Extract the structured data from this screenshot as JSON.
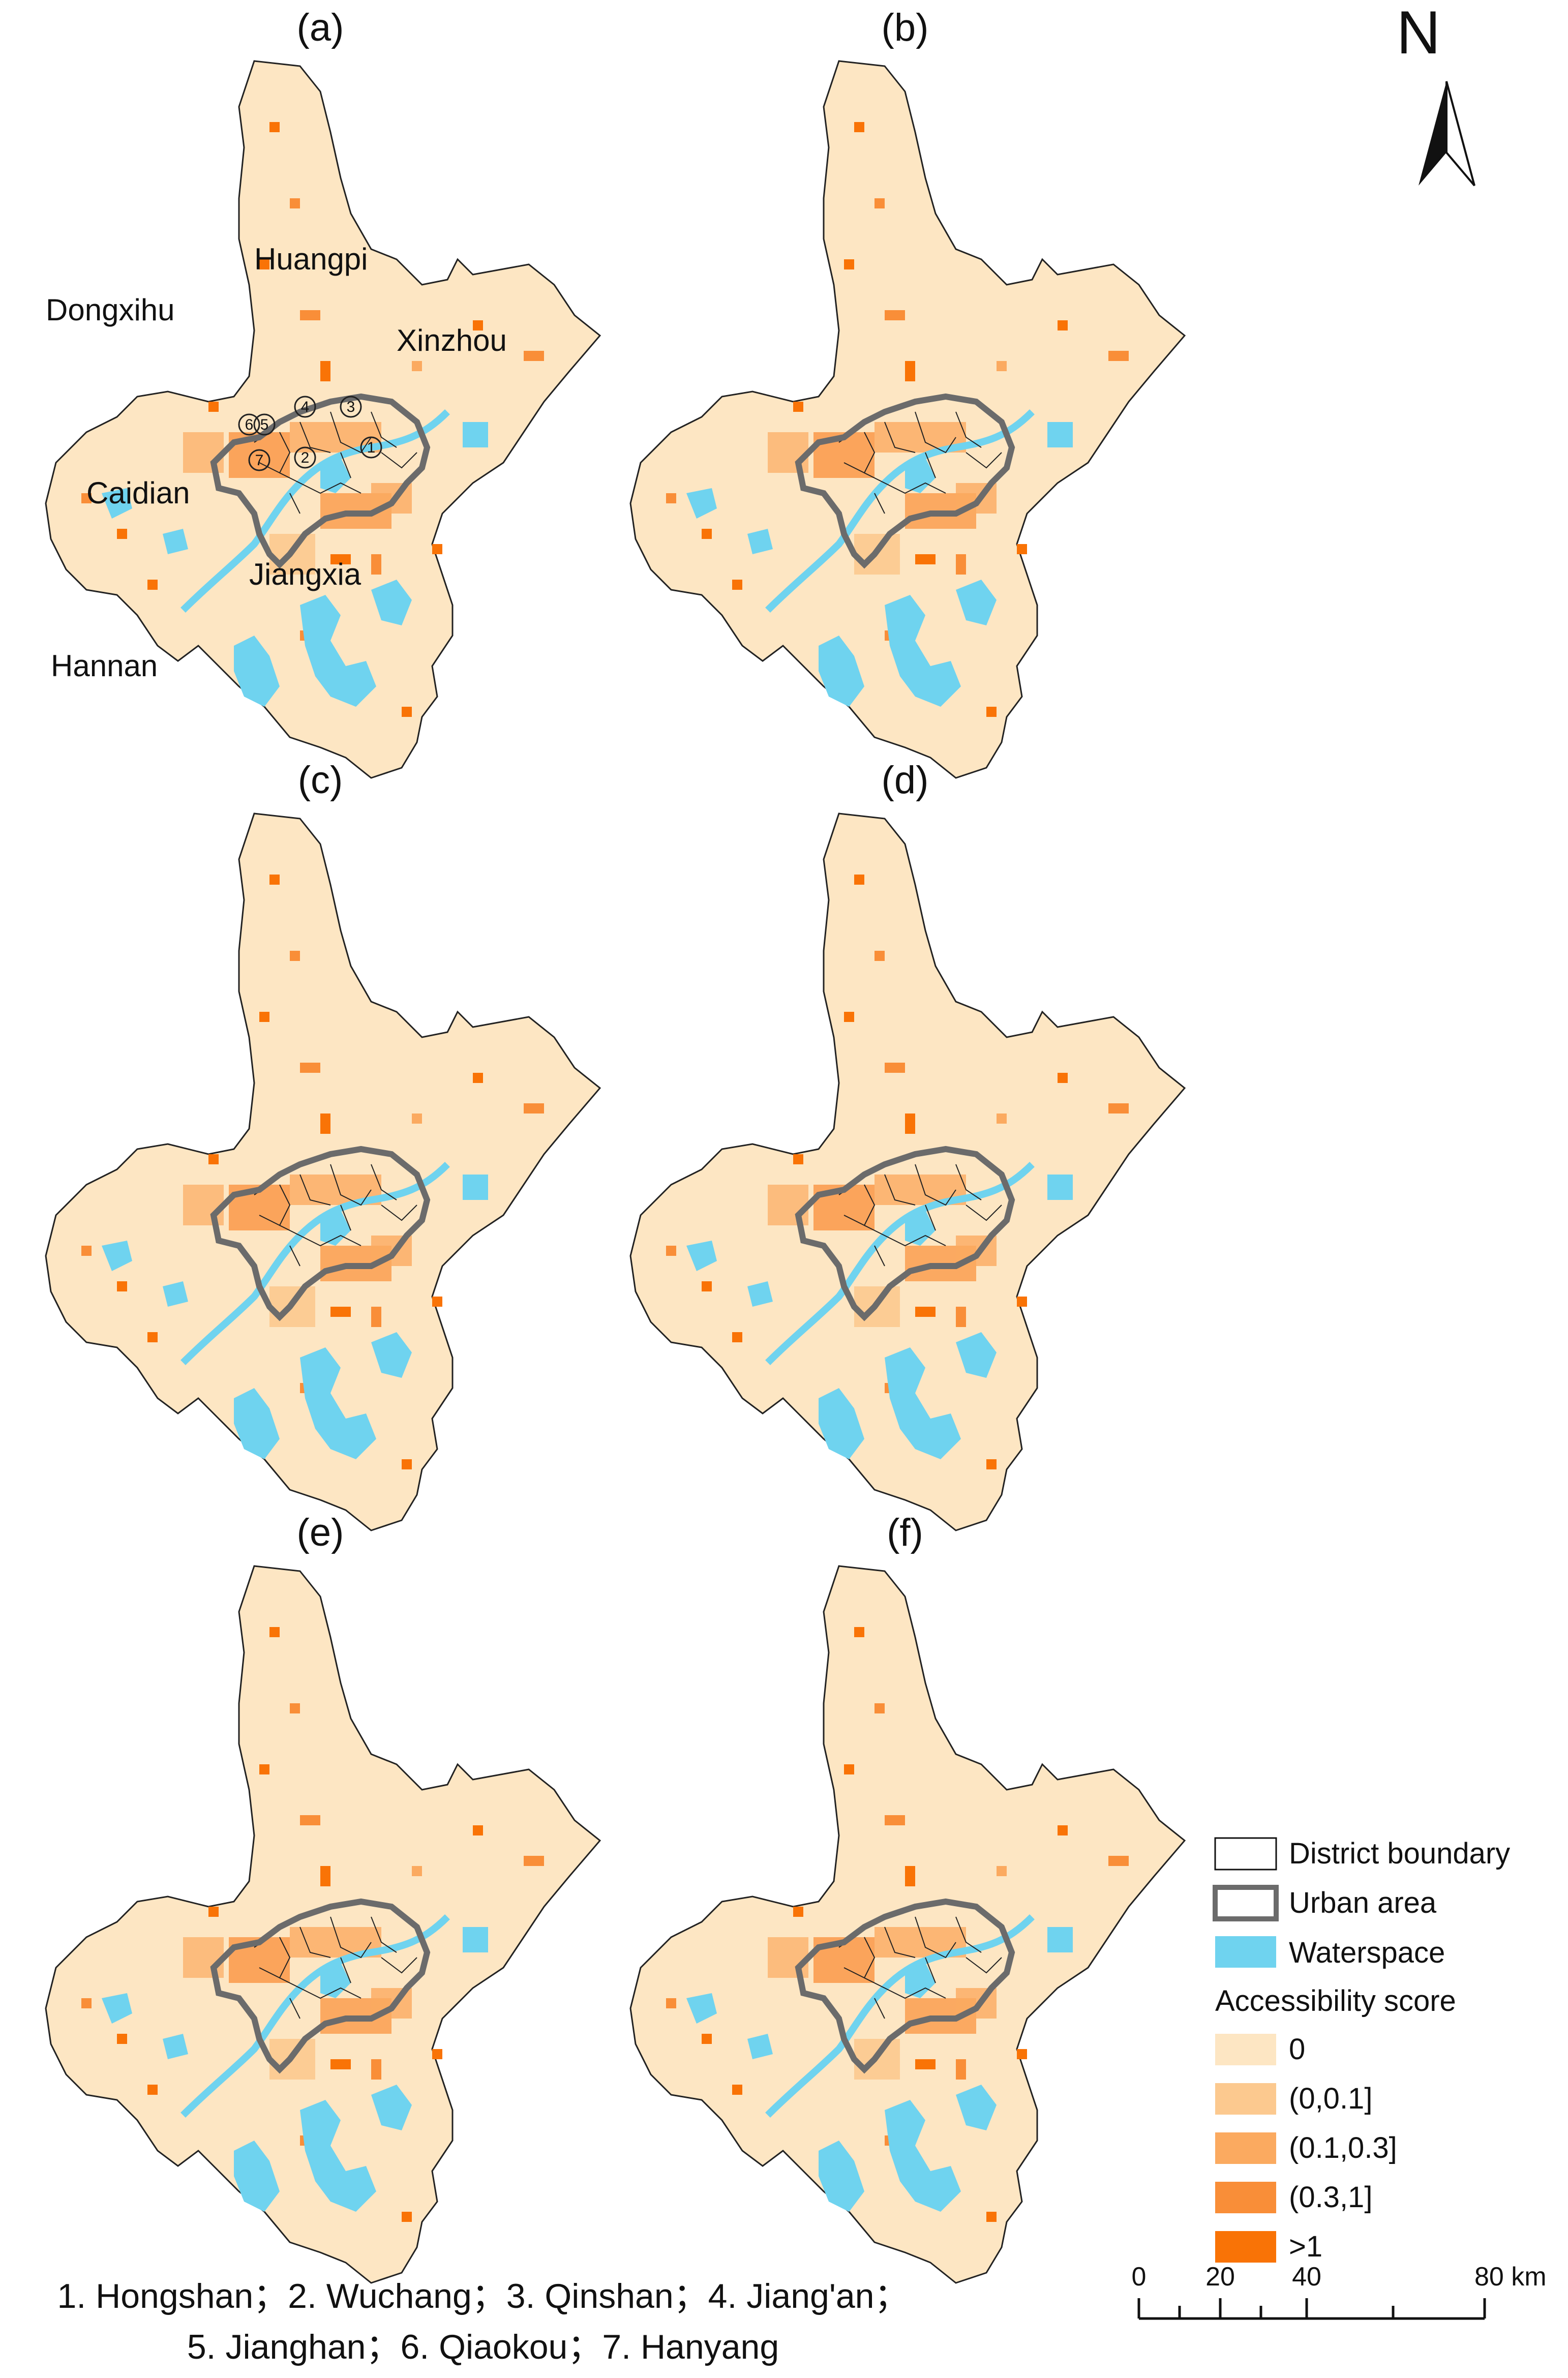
{
  "panels": [
    {
      "label": "(a)"
    },
    {
      "label": "(b)"
    },
    {
      "label": "(c)"
    },
    {
      "label": "(d)"
    },
    {
      "label": "(e)"
    },
    {
      "label": "(f)"
    }
  ],
  "place_names": [
    "Huangpi",
    "Dongxihu",
    "Xinzhou",
    "Caidian",
    "Jiangxia",
    "Hannan"
  ],
  "district_numbers": [
    "1",
    "2",
    "3",
    "4",
    "5",
    "6",
    "7"
  ],
  "north_arrow": {
    "letter": "N"
  },
  "legend": {
    "district_boundary": "District boundary",
    "urban_area": "Urban area",
    "waterspace": "Waterspace",
    "score_title": "Accessibility score",
    "classes": [
      {
        "label": "0",
        "color": "#fde6c3"
      },
      {
        "label": "(0,0.1]",
        "color": "#fcc98f"
      },
      {
        "label": "(0.1,0.3]",
        "color": "#fbaa60"
      },
      {
        "label": "(0.3,1]",
        "color": "#f98e38"
      },
      {
        "label": ">1",
        "color": "#f97306"
      }
    ],
    "water_color": "#6fd3ef",
    "urban_color": "#6b6b6b"
  },
  "caption": {
    "line1": "1. Hongshan；2. Wuchang；3. Qinshan；4. Jiang'an；",
    "line2": "5. Jianghan；6. Qiaokou；7. Hanyang"
  },
  "scale_bar": {
    "ticks": [
      "0",
      "20",
      "40",
      "80 km"
    ]
  }
}
